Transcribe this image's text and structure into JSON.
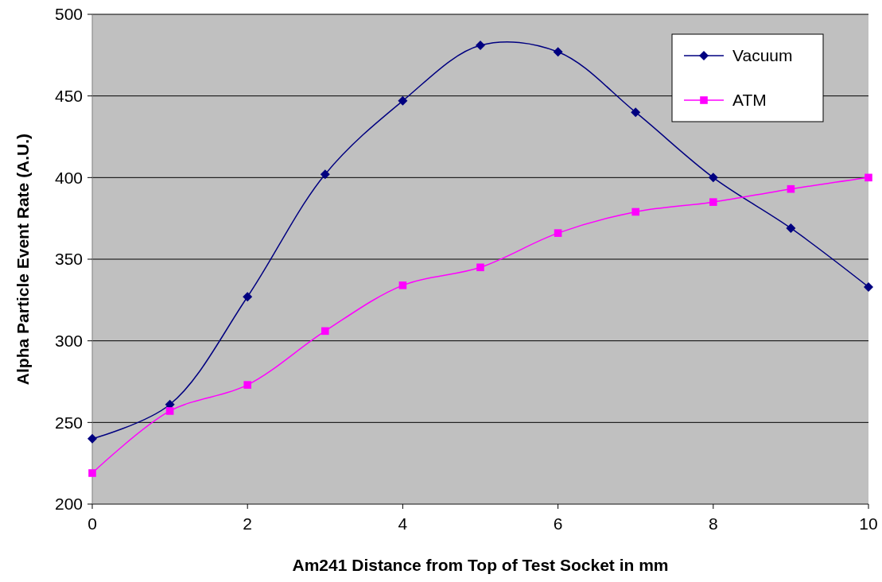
{
  "chart_data": {
    "type": "line",
    "xlabel": "Am241 Distance from Top of Test Socket in mm",
    "ylabel": "Alpha Particle Event Rate (A.U.)",
    "x": [
      0,
      1,
      2,
      3,
      4,
      5,
      6,
      7,
      8,
      9,
      10
    ],
    "series": [
      {
        "name": "Vacuum",
        "color": "#000080",
        "marker": "diamond",
        "values": [
          240,
          261,
          327,
          402,
          447,
          481,
          477,
          440,
          400,
          369,
          333
        ]
      },
      {
        "name": "ATM",
        "color": "#ff00ff",
        "marker": "square",
        "values": [
          219,
          257,
          273,
          306,
          334,
          345,
          366,
          379,
          385,
          393,
          400
        ]
      }
    ],
    "xlim": [
      0,
      10
    ],
    "xticks": [
      0,
      2,
      4,
      6,
      8,
      10
    ],
    "ylim": [
      200,
      500
    ],
    "yticks": [
      200,
      250,
      300,
      350,
      400,
      450,
      500
    ],
    "grid": "y",
    "legend": "top right",
    "line_style": "solid"
  }
}
